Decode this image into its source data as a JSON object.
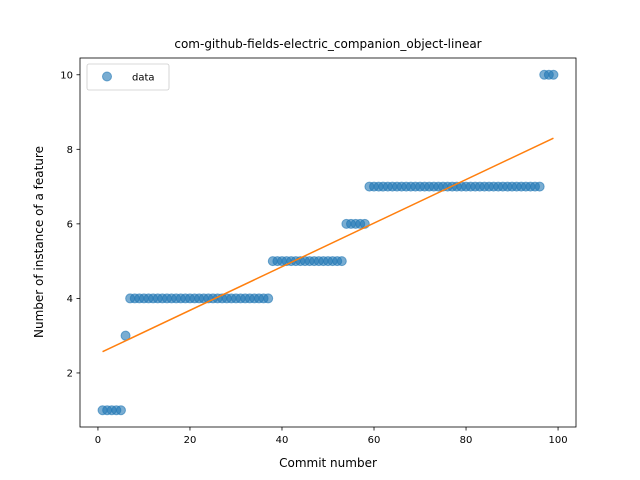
{
  "chart_data": {
    "type": "scatter",
    "title": "com-github-fields-electric_companion_object-linear",
    "xlabel": "Commit number",
    "ylabel": "Number of instance of a feature",
    "xlim": [
      -3.9,
      103.9
    ],
    "ylim": [
      0.55,
      10.45
    ],
    "xticks": [
      0,
      20,
      40,
      60,
      80,
      100
    ],
    "yticks": [
      2,
      4,
      6,
      8,
      10
    ],
    "grid": false,
    "legend": {
      "position": "top-left",
      "entries": [
        "data"
      ]
    },
    "colors": {
      "data": "#1f77b4",
      "fit": "#ff7f0e"
    },
    "series": [
      {
        "name": "data",
        "x": [
          1,
          2,
          3,
          4,
          5,
          6,
          7,
          8,
          9,
          10,
          11,
          12,
          13,
          14,
          15,
          16,
          17,
          18,
          19,
          20,
          21,
          22,
          23,
          24,
          25,
          26,
          27,
          28,
          29,
          30,
          31,
          32,
          33,
          34,
          35,
          36,
          37,
          38,
          39,
          40,
          41,
          42,
          43,
          44,
          45,
          46,
          47,
          48,
          49,
          50,
          51,
          52,
          53,
          54,
          55,
          56,
          57,
          58,
          59,
          60,
          61,
          62,
          63,
          64,
          65,
          66,
          67,
          68,
          69,
          70,
          71,
          72,
          73,
          74,
          75,
          76,
          77,
          78,
          79,
          80,
          81,
          82,
          83,
          84,
          85,
          86,
          87,
          88,
          89,
          90,
          91,
          92,
          93,
          94,
          95,
          96,
          97,
          98,
          99
        ],
        "y": [
          1,
          1,
          1,
          1,
          1,
          3,
          4,
          4,
          4,
          4,
          4,
          4,
          4,
          4,
          4,
          4,
          4,
          4,
          4,
          4,
          4,
          4,
          4,
          4,
          4,
          4,
          4,
          4,
          4,
          4,
          4,
          4,
          4,
          4,
          4,
          4,
          4,
          5,
          5,
          5,
          5,
          5,
          5,
          5,
          5,
          5,
          5,
          5,
          5,
          5,
          5,
          5,
          5,
          6,
          6,
          6,
          6,
          6,
          7,
          7,
          7,
          7,
          7,
          7,
          7,
          7,
          7,
          7,
          7,
          7,
          7,
          7,
          7,
          7,
          7,
          7,
          7,
          7,
          7,
          7,
          7,
          7,
          7,
          7,
          7,
          7,
          7,
          7,
          7,
          7,
          7,
          7,
          7,
          7,
          7,
          7,
          10,
          10,
          10
        ]
      }
    ],
    "fit_line": {
      "x": [
        1,
        99
      ],
      "y": [
        2.57,
        8.3
      ]
    }
  }
}
